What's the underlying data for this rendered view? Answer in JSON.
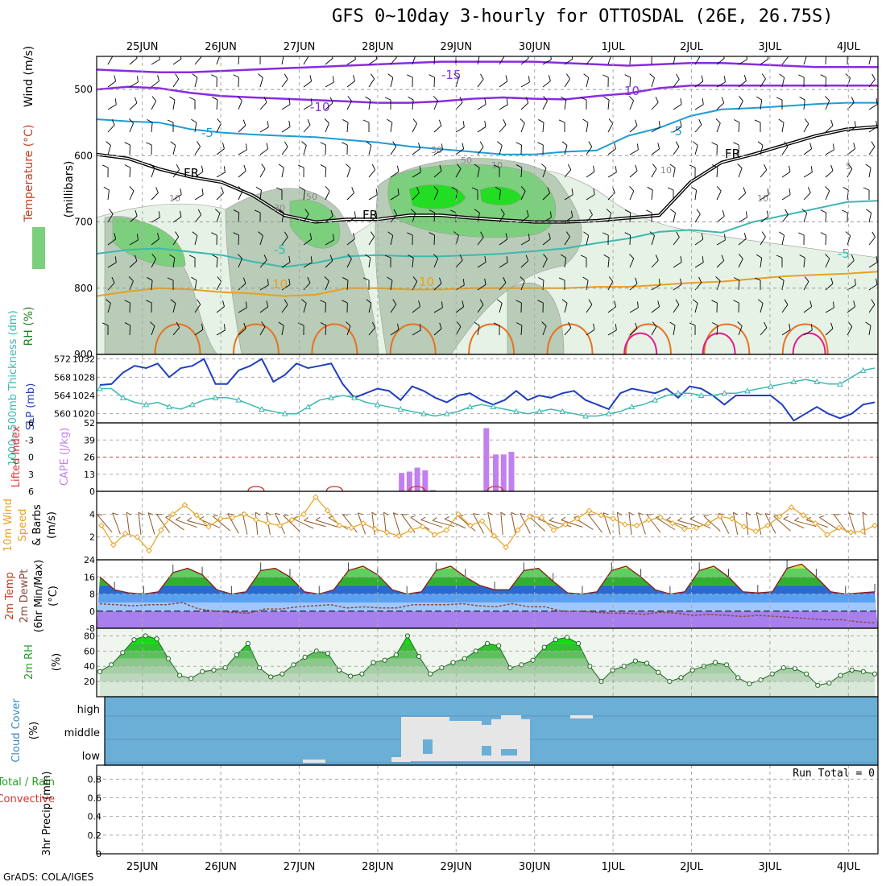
{
  "title": "GFS 0~10day 3-hourly for OTTOSDAL (26E, 26.75S)",
  "footer": "GrADS: COLA/IGES",
  "dates": [
    "25JUN",
    "26JUN",
    "27JUN",
    "28JUN",
    "29JUN",
    "30JUN",
    "1JUL",
    "2JUL",
    "3JUL",
    "4JUL"
  ],
  "colors": {
    "temp_contour_cold": "#8a2be2",
    "temp_contour_cool": "#1e9bd7",
    "temp_contour_warm": "#e8a020",
    "temp_contour_hot": "#e87020",
    "temp_contour_very_hot": "#e0208a",
    "rh_light": "#e6f2e6",
    "rh_mid": "#b8ccb8",
    "rh_high": "#7ccf7c",
    "rh_max": "#22dd22",
    "slp": "#1f3fbf",
    "thickness": "#3cb8b0",
    "cape": "#c080ee",
    "lifted_index": "#e03030",
    "wind_speed": "#e8a020",
    "barb": "#8b5a2b",
    "dewpoint": "#8b4a3a",
    "cloud_bg": "#6baed6",
    "cloud_fill": "#e6e6e6",
    "rh2m": "#2aa02a"
  },
  "chart_data": [
    {
      "panel": "upper-air",
      "type": "heatmap",
      "ylabel_parts": [
        "Wind (m/s)",
        "Temperature (°C)",
        "RH (%)",
        "(millibars)"
      ],
      "yticks": [
        500,
        600,
        700,
        800,
        900
      ],
      "ylim": [
        900,
        450
      ],
      "contour_labels": [
        "-15",
        "-10",
        "10",
        "-5",
        "-5",
        "-5",
        "FR",
        "FR",
        "FR",
        "-5",
        "10",
        "10",
        "10",
        "30",
        "50",
        "10",
        "30",
        "50",
        "10",
        "10",
        "5"
      ],
      "series": [
        {
          "name": "-15",
          "values": [
            470,
            472,
            474,
            474,
            472,
            470,
            468,
            466,
            464,
            462,
            460,
            458,
            458,
            458,
            458,
            460,
            462,
            464,
            462,
            460,
            460,
            462,
            464,
            466,
            466,
            466
          ]
        },
        {
          "name": "-10",
          "values": [
            500,
            496,
            498,
            505,
            510,
            512,
            514,
            516,
            518,
            520,
            520,
            518,
            514,
            512,
            514,
            515,
            510,
            506,
            498,
            494,
            494,
            494,
            494,
            494,
            494,
            494
          ]
        },
        {
          "name": "-5",
          "values": [
            545,
            548,
            550,
            560,
            565,
            568,
            570,
            572,
            576,
            580,
            586,
            590,
            594,
            598,
            598,
            594,
            592,
            570,
            558,
            540,
            530,
            528,
            525,
            522,
            520,
            520
          ]
        },
        {
          "name": "FR",
          "values": [
            598,
            604,
            620,
            632,
            640,
            660,
            690,
            700,
            696,
            696,
            690,
            690,
            694,
            697,
            700,
            700,
            698,
            694,
            690,
            640,
            610,
            598,
            584,
            570,
            560,
            556
          ]
        },
        {
          "name": "5",
          "values": [
            748,
            742,
            740,
            745,
            750,
            760,
            768,
            762,
            752,
            750,
            752,
            752,
            750,
            748,
            744,
            740,
            732,
            725,
            715,
            712,
            716,
            700,
            690,
            680,
            670,
            668
          ]
        },
        {
          "name": "10",
          "values": [
            812,
            805,
            800,
            802,
            806,
            808,
            812,
            810,
            800,
            800,
            802,
            802,
            800,
            800,
            800,
            800,
            798,
            798,
            795,
            792,
            790,
            786,
            782,
            780,
            778,
            775
          ]
        }
      ]
    },
    {
      "panel": "slp-thickness",
      "type": "line",
      "ylabel_left": "1000~500mb Thickness (dm)",
      "ylabel_right": "SLP (mb)",
      "thickness_ticks": [
        560,
        564,
        568,
        572
      ],
      "slp_ticks": [
        1020,
        1024,
        1028,
        1032
      ],
      "series": [
        {
          "name": "SLP (mb)",
          "values": [
            1026.3,
            1026.5,
            1029.0,
            1030.5,
            1030.0,
            1031.0,
            1028.0,
            1030.0,
            1030.5,
            1032.0,
            1026.5,
            1026.5,
            1029.5,
            1030.5,
            1032.0,
            1027.0,
            1028.5,
            1031.0,
            1030.0,
            1030.5,
            1031.0,
            1026.5,
            1023.5,
            1024.5,
            1025.5,
            1025.0,
            1023.0,
            1026.0,
            1025.0,
            1023.5,
            1022.5,
            1024.0,
            1024.5,
            1023.0,
            1022.0,
            1023.0,
            1025.0,
            1023.0,
            1024.0,
            1023.5,
            1024.5,
            1025.0,
            1023.0,
            1022.0,
            1021.0,
            1024.5,
            1025.5,
            1025.0,
            1024.5,
            1025.5,
            1023.5,
            1026.0,
            1025.5,
            1024.0,
            1022.0,
            1024.0,
            1024.0,
            1024.0,
            1024.0,
            1022.0,
            1018.5,
            1020.0,
            1021.5,
            1020.0,
            1019.0,
            1020.0,
            1022.0,
            1022.5
          ]
        },
        {
          "name": "Thickness (dm)",
          "values": [
            565.5,
            565.5,
            563.5,
            562.5,
            562.0,
            562.5,
            561.5,
            561.0,
            562.0,
            563.0,
            563.5,
            563.5,
            563.0,
            562.0,
            561.0,
            560.5,
            560.0,
            560.0,
            561.5,
            563.0,
            563.5,
            564.0,
            563.5,
            562.5,
            562.0,
            561.5,
            561.0,
            560.5,
            560.0,
            559.5,
            560.0,
            560.5,
            561.5,
            562.0,
            561.5,
            561.0,
            560.5,
            560.0,
            560.5,
            561.0,
            560.5,
            560.0,
            559.5,
            559.5,
            560.0,
            560.5,
            561.5,
            562.0,
            563.0,
            564.0,
            564.5,
            564.5,
            564.0,
            564.0,
            564.5,
            564.5,
            565.0,
            565.5,
            566.0,
            566.5,
            567.0,
            567.5,
            567.0,
            566.5,
            566.5,
            568.0,
            569.5,
            570.0
          ]
        }
      ]
    },
    {
      "panel": "cape-li",
      "type": "bar",
      "ylabel_left": "Lifted Index",
      "ylabel_right": "CAPE (J/kg)",
      "li_ticks": [
        "-6",
        "-3",
        "0",
        "3",
        "6"
      ],
      "cape_ticks": [
        0,
        13,
        26,
        39,
        52
      ],
      "bar_times": [
        28.3,
        28.4,
        28.5,
        28.6,
        28.7,
        28.8,
        29.38,
        29.5,
        29.6,
        29.7
      ],
      "values": [
        14,
        15,
        18,
        16,
        1,
        0,
        48,
        28,
        28,
        30
      ]
    },
    {
      "panel": "wind10m",
      "type": "line",
      "ylabel_parts": [
        "10m Wind",
        "Speed",
        "& Barbs",
        "(m/s)"
      ],
      "yticks": [
        2,
        4
      ],
      "series": [
        {
          "name": "Speed (m/s)",
          "values": [
            3.0,
            1.3,
            2.3,
            2.0,
            0.8,
            2.6,
            4.0,
            4.8,
            3.9,
            2.9,
            3.6,
            3.7,
            4.0,
            3.5,
            3.2,
            3.0,
            3.5,
            4.0,
            5.5,
            4.3,
            3.0,
            2.8,
            3.2,
            2.7,
            2.4,
            2.1,
            2.6,
            2.9,
            2.2,
            2.6,
            4.0,
            3.0,
            3.4,
            2.1,
            1.1,
            2.6,
            3.8,
            3.7,
            2.6,
            3.1,
            3.6,
            4.3,
            3.9,
            3.6,
            3.1,
            3.0,
            3.5,
            3.7,
            3.2,
            2.7,
            2.8,
            3.2,
            3.8,
            3.6,
            2.9,
            2.5,
            3.0,
            3.8,
            4.6,
            3.9,
            3.2,
            2.2,
            2.8,
            2.4,
            2.5,
            3.0
          ]
        }
      ]
    },
    {
      "panel": "temp2m",
      "type": "area",
      "ylabel_parts": [
        "2m Temp",
        "2m DewPt",
        "(6hr Min/Max)",
        "(°C)"
      ],
      "yticks": [
        "-8",
        "0",
        "8",
        "16",
        "24"
      ],
      "series": [
        {
          "name": "2m Temp",
          "values": [
            16.0,
            10.0,
            8.5,
            8.0,
            9.0,
            18.0,
            20.0,
            17.0,
            10.0,
            8.0,
            9.0,
            19.0,
            20.0,
            16.0,
            9.0,
            8.0,
            10.0,
            19.0,
            21.0,
            17.0,
            10.0,
            8.0,
            9.0,
            19.0,
            21.0,
            16.0,
            12.0,
            10.0,
            10.0,
            19.0,
            20.0,
            14.0,
            8.5,
            8.0,
            9.0,
            19.0,
            21.0,
            16.0,
            10.0,
            8.0,
            9.0,
            19.0,
            21.0,
            16.0,
            9.0,
            8.5,
            9.0,
            20.0,
            22.0,
            16.0,
            9.0,
            8.0,
            8.5,
            9.0
          ]
        },
        {
          "name": "2m DewPt",
          "values": [
            3.5,
            3.0,
            2.5,
            3.0,
            3.0,
            4.0,
            1.0,
            0.0,
            -0.5,
            -1.0,
            1.0,
            1.0,
            2.0,
            2.5,
            3.0,
            1.5,
            2.0,
            1.5,
            1.5,
            3.0,
            3.0,
            3.0,
            3.5,
            2.5,
            2.0,
            3.5,
            2.0,
            2.0,
            0.0,
            0.0,
            -0.5,
            -1.0,
            -1.0,
            -1.5,
            -0.5,
            -1.0,
            -2.0,
            -1.5,
            -2.0,
            -2.5,
            -2.0,
            -2.5,
            -3.0,
            -3.5,
            -4.0,
            -4.0,
            -5.0,
            -5.5
          ]
        }
      ]
    },
    {
      "panel": "rh2m",
      "type": "area",
      "ylabel_parts": [
        "2m RH",
        "(%)"
      ],
      "yticks": [
        20,
        40,
        60,
        80
      ],
      "series": [
        {
          "name": "2m RH (%)",
          "values": [
            33,
            42,
            58,
            75,
            80,
            76,
            50,
            28,
            24,
            33,
            35,
            38,
            55,
            70,
            38,
            26,
            30,
            42,
            52,
            60,
            57,
            35,
            27,
            30,
            45,
            48,
            55,
            80,
            53,
            30,
            38,
            45,
            50,
            60,
            70,
            67,
            38,
            42,
            48,
            65,
            75,
            78,
            70,
            40,
            20,
            35,
            40,
            47,
            44,
            32,
            20,
            25,
            35,
            40,
            45,
            42,
            25,
            17,
            22,
            30,
            38,
            37,
            30,
            15,
            18,
            28,
            35,
            33,
            30
          ]
        }
      ]
    },
    {
      "panel": "cloud",
      "type": "heatmap",
      "ylabel_parts": [
        "Cloud Cover",
        "(%)"
      ],
      "rows": [
        "high",
        "middle",
        "low"
      ]
    },
    {
      "panel": "precip",
      "type": "bar",
      "ylabel_parts": [
        "Total / Rain",
        "Convective",
        "3hr Precip (mm)"
      ],
      "yticks": [
        "0",
        "0.2",
        "0.4",
        "0.6",
        "0.8"
      ],
      "run_total": "Run Total = 0",
      "values": []
    }
  ]
}
